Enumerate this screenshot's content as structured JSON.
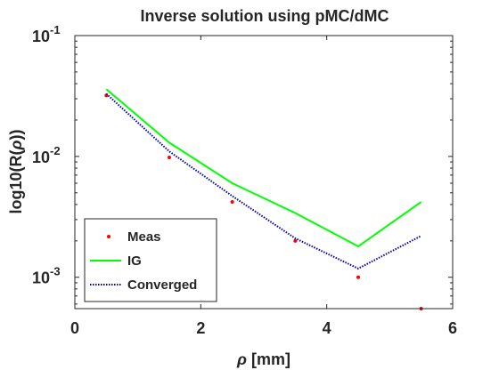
{
  "chart_data": {
    "type": "line",
    "title": "Inverse solution using pMC/dMC",
    "xlabel_symbol": "ρ",
    "xlabel_unit": " [mm]",
    "ylabel_prefix": "log10(R(",
    "ylabel_symbol": "ρ",
    "ylabel_suffix": "))",
    "y_scale": "log",
    "xlim": [
      0,
      6
    ],
    "ylim": [
      0.00055,
      0.1
    ],
    "x_ticks": [
      0,
      2,
      4,
      6
    ],
    "x_tick_labels": [
      "0",
      "2",
      "4",
      "6"
    ],
    "y_ticks": [
      {
        "value": 0.001,
        "base": "10",
        "exp": "-3"
      },
      {
        "value": 0.01,
        "base": "10",
        "exp": "-2"
      },
      {
        "value": 0.1,
        "base": "10",
        "exp": "-1"
      }
    ],
    "grid": false,
    "legend_position": "bottom-left",
    "series": [
      {
        "name": "Meas",
        "style": "points",
        "color": "#ff0000",
        "x": [
          0.5,
          1.5,
          2.5,
          3.5,
          4.5,
          5.5
        ],
        "y": [
          0.032,
          0.0098,
          0.0042,
          0.002,
          0.001,
          0.00055
        ]
      },
      {
        "name": "IG",
        "style": "solid",
        "color": "#00ff00",
        "x": [
          0.5,
          1.5,
          2.5,
          3.5,
          4.5,
          5.5
        ],
        "y": [
          0.036,
          0.013,
          0.006,
          0.0034,
          0.0018,
          0.0042
        ]
      },
      {
        "name": "Converged",
        "style": "dotted",
        "color": "#0000bb",
        "x": [
          0.5,
          1.5,
          2.5,
          3.5,
          4.5,
          5.5
        ],
        "y": [
          0.033,
          0.011,
          0.0047,
          0.0021,
          0.00118,
          0.0022
        ]
      }
    ]
  }
}
